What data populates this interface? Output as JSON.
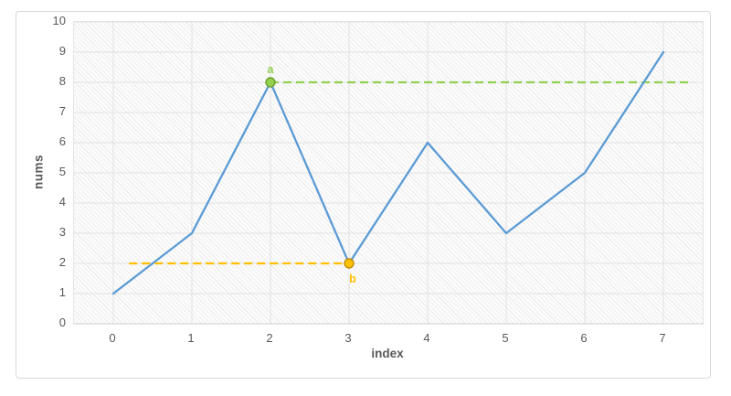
{
  "window": {
    "background": "#ffffff",
    "chart_border_color": "#d9d9d9"
  },
  "chart_data": {
    "type": "line",
    "title": "",
    "xlabel": "index",
    "ylabel": "nums",
    "categories": [
      0,
      1,
      2,
      3,
      4,
      5,
      6,
      7
    ],
    "series": [
      {
        "name": "nums",
        "color": "#5B9BD5",
        "values": [
          1,
          3,
          8,
          2,
          6,
          3,
          5,
          9
        ]
      }
    ],
    "xlim": [
      -0.5,
      7.5
    ],
    "ylim": [
      0,
      10
    ],
    "x_ticks": [
      "0",
      "1",
      "2",
      "3",
      "4",
      "5",
      "6",
      "7"
    ],
    "y_ticks": [
      "0",
      "1",
      "2",
      "3",
      "4",
      "5",
      "6",
      "7",
      "8",
      "9",
      "10"
    ],
    "grid": true,
    "legend": "none",
    "plot_background": "diagonal-hatch",
    "gridline_color": "#e2e2e2",
    "axis_line_color": "#cfcfcf",
    "tick_color": "#595959",
    "axis_title_color": "#595959",
    "annotations": [
      {
        "label": "a",
        "type": "horizontal-dashed-segment",
        "y": 8,
        "x_start": 2,
        "x_end": 7.35,
        "color": "#92D050",
        "marker_x": 2,
        "marker_fill": "#92D050",
        "marker_stroke": "#6FA02D",
        "label_position": "above-marker"
      },
      {
        "label": "b",
        "type": "horizontal-dashed-segment",
        "y": 2,
        "x_start": 0.2,
        "x_end": 3,
        "color": "#FFC000",
        "marker_x": 3,
        "marker_fill": "#FFC000",
        "marker_stroke": "#BF8F00",
        "label_position": "below-marker"
      }
    ]
  }
}
